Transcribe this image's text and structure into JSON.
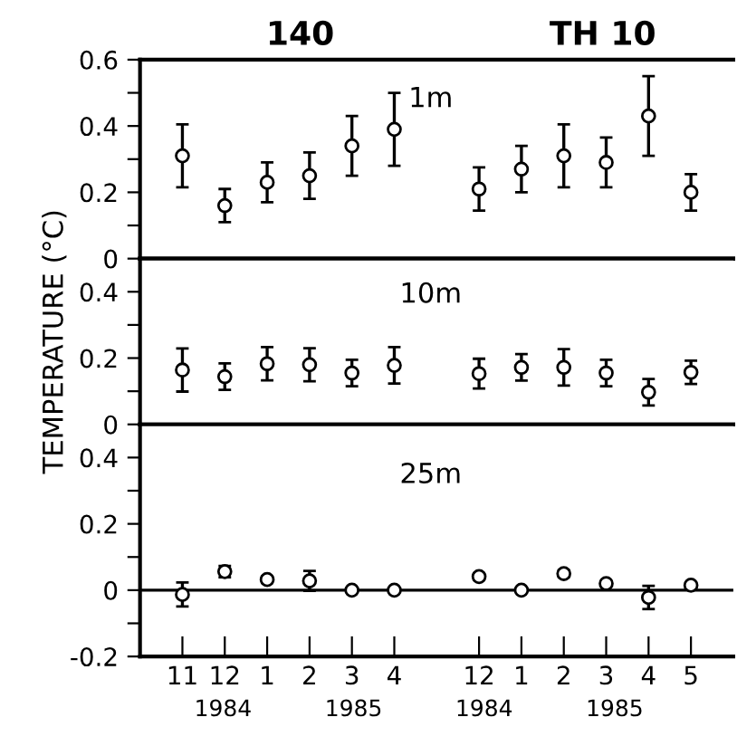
{
  "chart_data": [
    {
      "type": "scatter",
      "categories": [
        "11",
        "12",
        "1",
        "2",
        "3",
        "4",
        null,
        "12",
        "1",
        "2",
        "3",
        "4",
        "5"
      ],
      "series": [
        {
          "color": "#000000",
          "values": [
            0.31,
            0.16,
            0.23,
            0.25,
            0.34,
            0.39,
            null,
            0.21,
            0.27,
            0.31,
            0.29,
            0.43,
            0.2
          ],
          "errors": [
            0.095,
            0.05,
            0.06,
            0.07,
            0.09,
            0.11,
            null,
            0.065,
            0.07,
            0.095,
            0.075,
            0.12,
            0.055
          ]
        }
      ],
      "ylim": [
        0,
        0.6
      ],
      "yticks": [
        0,
        {
          "value": 0.1,
          "label": null
        },
        0.2,
        {
          "value": 0.3,
          "label": null
        },
        0.4,
        {
          "value": 0.5,
          "label": null
        },
        0.6
      ],
      "annotations": [
        "140",
        "TH 10",
        "1m"
      ],
      "marker": "circle",
      "tick_labels": "y"
    },
    {
      "type": "scatter",
      "categories": [
        "11",
        "12",
        "1",
        "2",
        "3",
        "4",
        null,
        "12",
        "1",
        "2",
        "3",
        "4",
        "5"
      ],
      "series": [
        {
          "color": "#000000",
          "values": [
            0.164,
            0.144,
            0.183,
            0.18,
            0.155,
            0.178,
            null,
            0.153,
            0.172,
            0.172,
            0.155,
            0.097,
            0.157
          ],
          "errors": [
            0.065,
            0.04,
            0.05,
            0.05,
            0.04,
            0.055,
            null,
            0.045,
            0.04,
            0.055,
            0.04,
            0.04,
            0.035
          ]
        }
      ],
      "ylim": [
        0,
        0.5
      ],
      "yticks": [
        0,
        {
          "value": 0.1,
          "label": null
        },
        0.2,
        {
          "value": 0.3,
          "label": null
        },
        0.4
      ],
      "ylabel": "TEMPERATURE (°C)",
      "annotations": [
        "10m"
      ],
      "marker": "circle",
      "tick_labels": "y"
    },
    {
      "type": "scatter",
      "categories": [
        "11",
        "12",
        "1",
        "2",
        "3",
        "4",
        null,
        "12",
        "1",
        "2",
        "3",
        "4",
        "5"
      ],
      "series": [
        {
          "color": "#000000",
          "values": [
            -0.013,
            0.056,
            0.032,
            0.028,
            0.0,
            0.0,
            null,
            0.041,
            0.0,
            0.05,
            0.02,
            -0.022,
            0.015
          ],
          "errors": [
            0.036,
            0.017,
            0.01,
            0.03,
            0.005,
            0.005,
            null,
            0.01,
            0.005,
            0.01,
            0.007,
            0.035,
            0.007
          ]
        }
      ],
      "ylim": [
        -0.2,
        0.5
      ],
      "yticks": [
        -0.2,
        {
          "value": -0.1,
          "label": null
        },
        0,
        {
          "value": 0.1,
          "label": null
        },
        0.2,
        {
          "value": 0.3,
          "label": null
        },
        0.4
      ],
      "ref_lines": [
        {
          "axis": "y",
          "value": 0,
          "color": "#000000"
        }
      ],
      "annotations": [
        "25m",
        "1984",
        "1985",
        "1984",
        "1985"
      ],
      "marker": "circle"
    }
  ]
}
